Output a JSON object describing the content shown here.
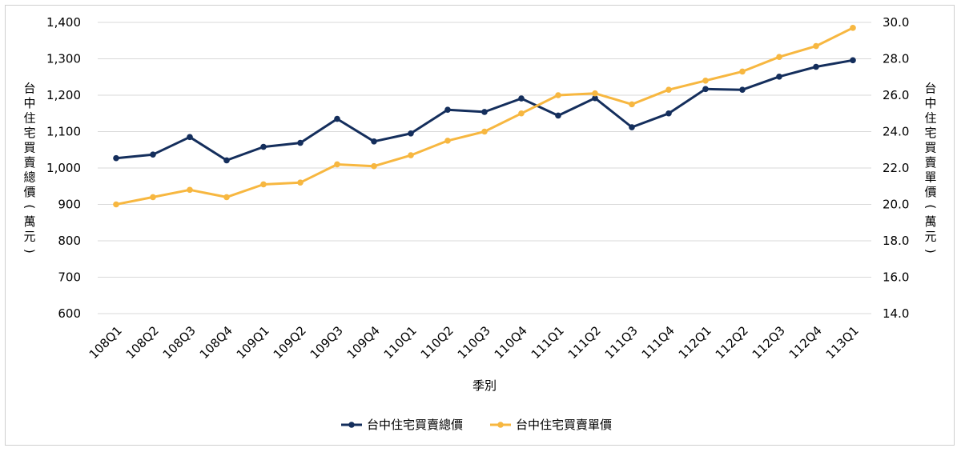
{
  "chart_data": {
    "type": "line",
    "categories": [
      "108Q1",
      "108Q2",
      "108Q3",
      "108Q4",
      "109Q1",
      "109Q2",
      "109Q3",
      "109Q4",
      "110Q1",
      "110Q2",
      "110Q3",
      "110Q4",
      "111Q1",
      "111Q2",
      "111Q3",
      "111Q4",
      "112Q1",
      "112Q2",
      "112Q3",
      "112Q4",
      "113Q1"
    ],
    "series": [
      {
        "name": "台中住宅買賣總價",
        "axis": "left",
        "color": "#142e5c",
        "values": [
          1027,
          1037,
          1085,
          1021,
          1058,
          1069,
          1135,
          1073,
          1095,
          1160,
          1154,
          1191,
          1144,
          1192,
          1112,
          1150,
          1217,
          1215,
          1251,
          1278,
          1296
        ]
      },
      {
        "name": "台中住宅買賣單價",
        "axis": "right",
        "color": "#f7b740",
        "values": [
          20.0,
          20.4,
          20.8,
          20.4,
          21.1,
          21.2,
          22.2,
          22.1,
          22.7,
          23.5,
          24.0,
          25.0,
          26.0,
          26.1,
          25.5,
          26.3,
          26.8,
          27.3,
          28.1,
          28.7,
          29.7
        ]
      }
    ],
    "y_left": {
      "label": "台中住宅買賣總價(萬元)",
      "ylim": [
        600,
        1400
      ],
      "ticks": [
        "600",
        "700",
        "800",
        "900",
        "1,000",
        "1,100",
        "1,200",
        "1,300",
        "1,400"
      ]
    },
    "y_right": {
      "label": "台中住宅買賣單價(萬元)",
      "ylim": [
        14.0,
        30.0
      ],
      "ticks": [
        "14.0",
        "16.0",
        "18.0",
        "20.0",
        "22.0",
        "24.0",
        "26.0",
        "28.0",
        "30.0"
      ]
    },
    "xlabel": "季別",
    "grid": true,
    "legend_position": "bottom"
  }
}
